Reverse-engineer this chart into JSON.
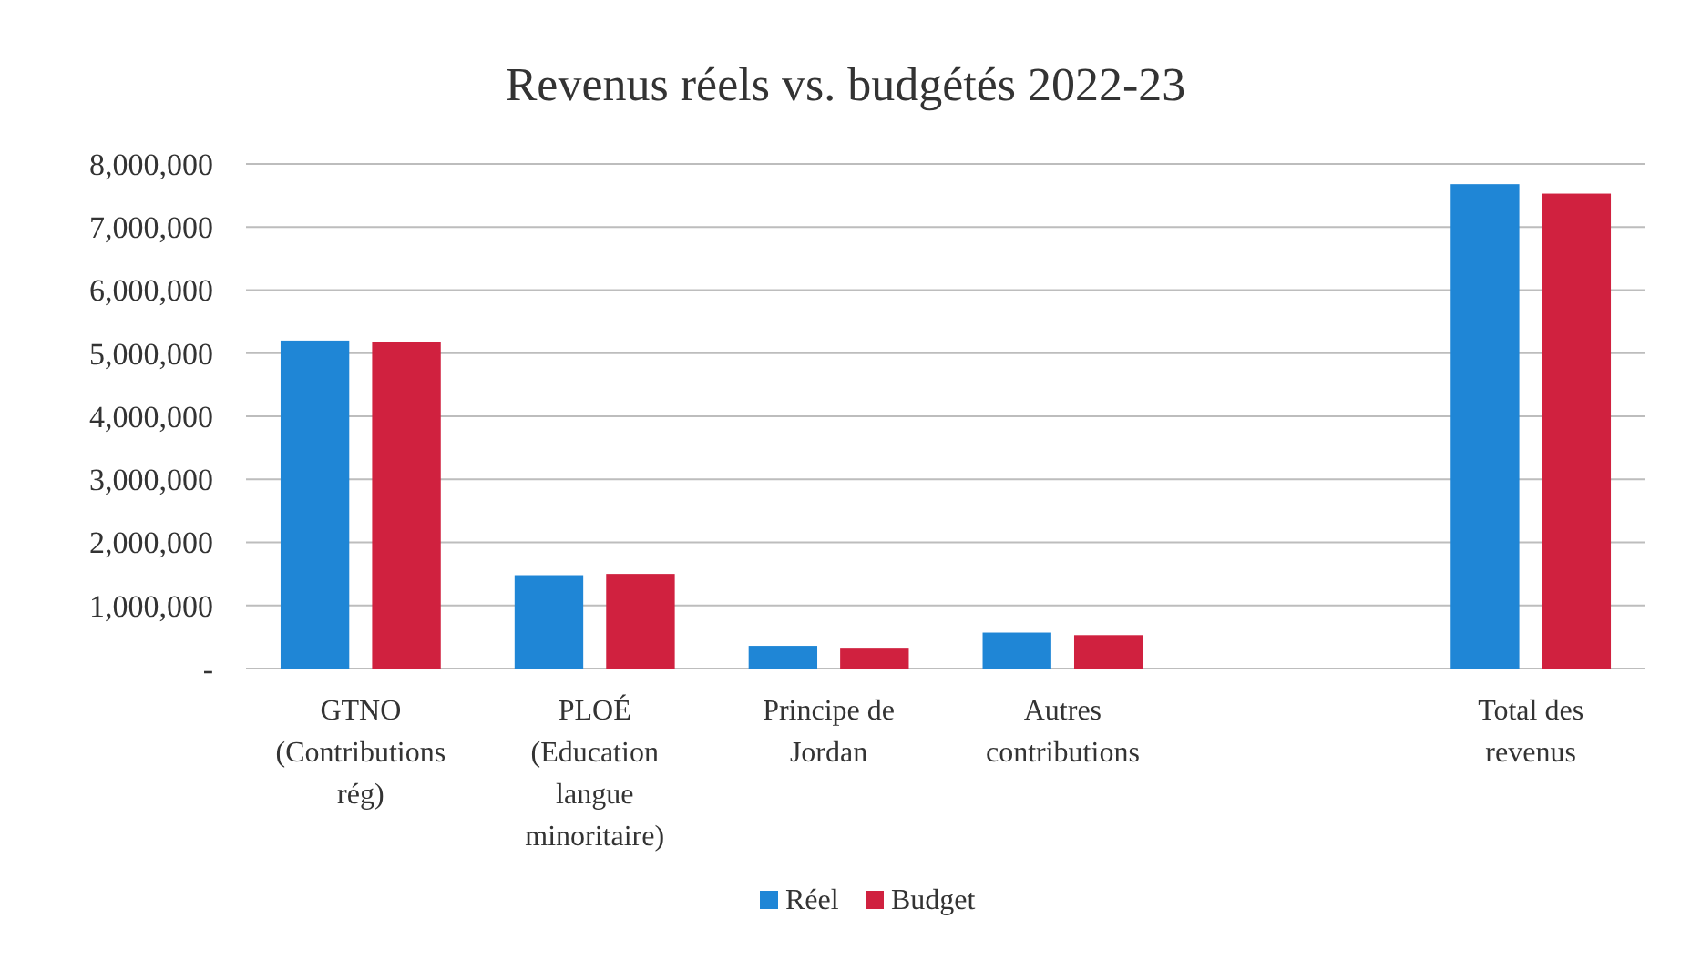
{
  "chart_data": {
    "type": "bar",
    "title": "Revenus réels vs. budgétés 2022-23",
    "categories": [
      "GTNO (Contributions rég)",
      "PLOÉ (Education langue minoritaire)",
      "Principe de Jordan",
      "Autres contributions",
      null,
      "Total des revenus"
    ],
    "series": [
      {
        "name": "Réel",
        "color": "#1f86d6",
        "values": [
          5200000,
          1480000,
          360000,
          570000,
          null,
          7680000
        ]
      },
      {
        "name": "Budget",
        "color": "#d0213f",
        "values": [
          5170000,
          1500000,
          330000,
          530000,
          null,
          7530000
        ]
      }
    ],
    "ylim": [
      0,
      8000000
    ],
    "yticks": [
      {
        "value": 0,
        "label": "-"
      },
      {
        "value": 1000000,
        "label": "1,000,000"
      },
      {
        "value": 2000000,
        "label": "2,000,000"
      },
      {
        "value": 3000000,
        "label": "3,000,000"
      },
      {
        "value": 4000000,
        "label": "4,000,000"
      },
      {
        "value": 5000000,
        "label": "5,000,000"
      },
      {
        "value": 6000000,
        "label": "6,000,000"
      },
      {
        "value": 7000000,
        "label": "7,000,000"
      },
      {
        "value": 8000000,
        "label": "8,000,000"
      }
    ],
    "grid": "y",
    "legend": "bottom"
  }
}
